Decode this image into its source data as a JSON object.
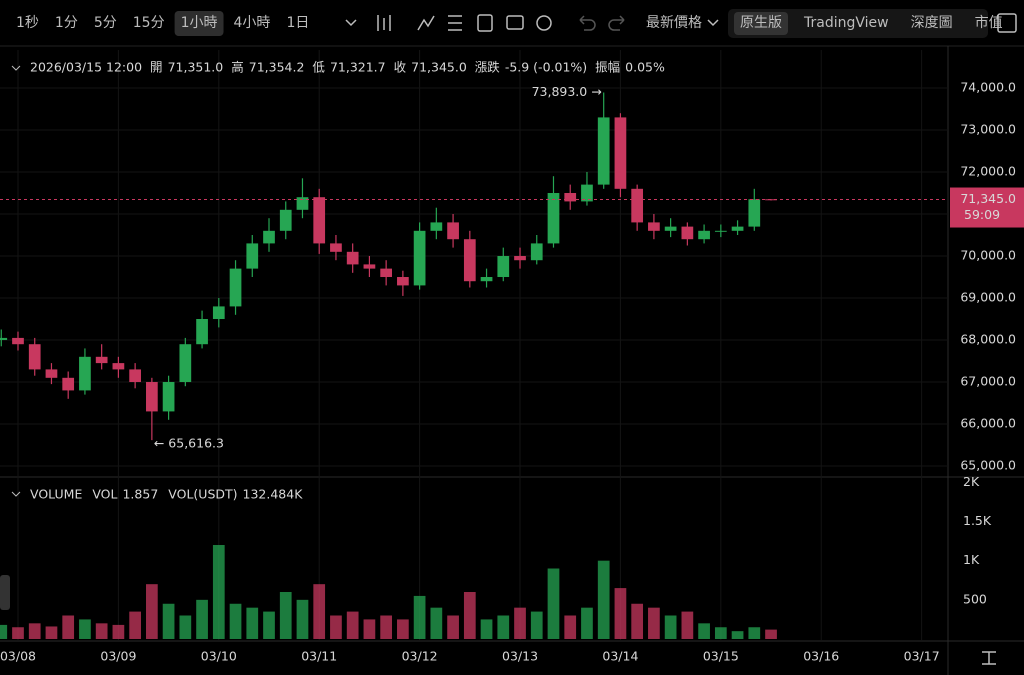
{
  "toolbar": {
    "intervals": [
      "1秒",
      "1分",
      "5分",
      "15分",
      "1小時",
      "4小時",
      "1日"
    ],
    "active_interval": 4,
    "price_type": "最新價格",
    "views": [
      "原生版",
      "TradingView",
      "深度圖",
      "市值"
    ],
    "active_view": 0
  },
  "chart_data": [
    {
      "type": "candlestick",
      "header": {
        "time": "2026/03/15 12:00",
        "fields": [
          {
            "label": "開",
            "value": "71,351.0"
          },
          {
            "label": "高",
            "value": "71,354.2"
          },
          {
            "label": "低",
            "value": "71,321.7"
          },
          {
            "label": "收",
            "value": "71,345.0"
          },
          {
            "label": "漲跌",
            "value": "-5.9 (-0.01%)"
          },
          {
            "label": "振幅",
            "value": "0.05%"
          }
        ]
      },
      "x": [
        -4,
        0,
        4,
        8,
        12,
        16,
        20,
        24,
        28,
        32,
        36,
        40,
        44,
        48,
        52,
        56,
        60,
        64,
        68,
        72,
        76,
        80,
        84,
        88,
        92,
        96,
        100,
        104,
        108,
        112,
        116,
        120,
        124,
        128,
        132,
        136,
        140,
        144,
        148,
        152,
        156,
        160,
        164,
        168,
        172,
        176,
        180
      ],
      "open": [
        68000,
        68050,
        67900,
        67300,
        67100,
        66800,
        67600,
        67450,
        67300,
        67000,
        66300,
        67000,
        67900,
        68500,
        68800,
        69700,
        70300,
        70600,
        71100,
        71400,
        70300,
        70100,
        69800,
        69700,
        69500,
        69300,
        70600,
        70800,
        70400,
        69400,
        69500,
        70000,
        69900,
        70300,
        71500,
        71300,
        71700,
        73300,
        71600,
        70800,
        70600,
        70700,
        70400,
        70600,
        70600,
        70700,
        71351
      ],
      "high": [
        68250,
        68200,
        68050,
        67450,
        67250,
        67800,
        67900,
        67600,
        67450,
        67100,
        67150,
        68050,
        68700,
        69000,
        69900,
        70500,
        70900,
        71300,
        71850,
        71600,
        70500,
        70300,
        70000,
        69900,
        69650,
        70800,
        71150,
        71000,
        70600,
        69700,
        70200,
        70200,
        70500,
        71900,
        71700,
        72000,
        73893.0,
        73400,
        71700,
        71000,
        70900,
        70800,
        70750,
        70750,
        70850,
        71600,
        71354.2
      ],
      "low": [
        67850,
        67750,
        67150,
        66950,
        66600,
        66700,
        67300,
        67100,
        66850,
        65616.3,
        66100,
        66900,
        67800,
        68300,
        68600,
        69500,
        70100,
        70400,
        70900,
        70050,
        69900,
        69600,
        69500,
        69300,
        69050,
        69200,
        70400,
        70200,
        69250,
        69250,
        69400,
        69700,
        69800,
        70200,
        71100,
        71200,
        71600,
        71400,
        70600,
        70400,
        70450,
        70250,
        70300,
        70450,
        70500,
        70600,
        71321.7
      ],
      "close": [
        68050,
        67900,
        67300,
        67100,
        66800,
        67600,
        67450,
        67300,
        67000,
        66300,
        67000,
        67900,
        68500,
        68800,
        69700,
        70300,
        70600,
        71100,
        71400,
        70300,
        70100,
        69800,
        69700,
        69500,
        69300,
        70600,
        70800,
        70400,
        69400,
        69500,
        70000,
        69900,
        70300,
        71500,
        71300,
        71700,
        73300,
        71600,
        70800,
        70600,
        70700,
        70400,
        70600,
        70600,
        70700,
        71351,
        71345
      ],
      "up_color": "#26a653",
      "down_color": "#c8385f",
      "xlim": [
        -4.3,
        222.3
      ],
      "xticks": [
        {
          "value": 0,
          "label": "03/08"
        },
        {
          "value": 24,
          "label": "03/09"
        },
        {
          "value": 48,
          "label": "03/10"
        },
        {
          "value": 72,
          "label": "03/11"
        },
        {
          "value": 96,
          "label": "03/12"
        },
        {
          "value": 120,
          "label": "03/13"
        },
        {
          "value": 144,
          "label": "03/14"
        },
        {
          "value": 168,
          "label": "03/15"
        },
        {
          "value": 192,
          "label": "03/16"
        },
        {
          "value": 216,
          "label": "03/17"
        }
      ],
      "ylim": [
        64786,
        74905
      ],
      "yticks": [
        {
          "value": 65000,
          "label": "65,000.0"
        },
        {
          "value": 66000,
          "label": "66,000.0"
        },
        {
          "value": 67000,
          "label": "67,000.0"
        },
        {
          "value": 68000,
          "label": "68,000.0"
        },
        {
          "value": 69000,
          "label": "69,000.0"
        },
        {
          "value": 70000,
          "label": "70,000.0"
        },
        {
          "value": 71000,
          "label": "71,000.0"
        },
        {
          "value": 72000,
          "label": "72,000.0"
        },
        {
          "value": 73000,
          "label": "73,000.0"
        },
        {
          "value": 74000,
          "label": "74,000.0"
        }
      ],
      "last_price": {
        "value": 71345.0,
        "label": "71,345.0"
      },
      "countdown": "59:09",
      "max_label": "73,893.0 →",
      "min_label": "← 65,616.3"
    },
    {
      "type": "bar",
      "header": {
        "title": "VOLUME",
        "fields": [
          {
            "label": "VOL",
            "value": "1.857"
          },
          {
            "label": "VOL(USDT)",
            "value": "132.484K"
          }
        ]
      },
      "values": [
        180,
        150,
        200,
        160,
        300,
        250,
        200,
        180,
        350,
        700,
        450,
        300,
        500,
        1200,
        450,
        400,
        350,
        600,
        500,
        700,
        300,
        350,
        250,
        300,
        250,
        550,
        400,
        300,
        600,
        250,
        300,
        400,
        350,
        900,
        300,
        400,
        1000,
        650,
        450,
        400,
        300,
        350,
        200,
        150,
        100,
        150,
        120
      ],
      "ylim": [
        0,
        2030
      ],
      "yticks": [
        500,
        {
          "value": 1000,
          "label": "1K"
        },
        {
          "value": 1500,
          "label": "1.5K"
        },
        {
          "value": 2000,
          "label": "2K"
        }
      ]
    }
  ]
}
